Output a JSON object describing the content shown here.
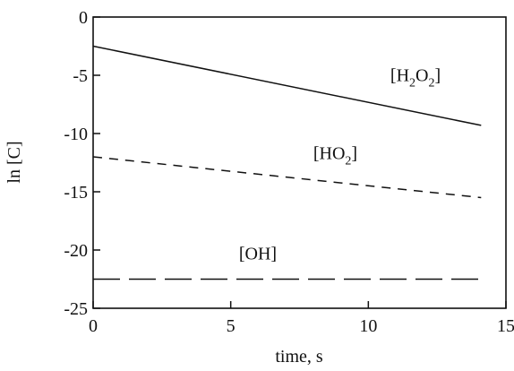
{
  "chart_data": {
    "type": "line",
    "xlabel": "time, s",
    "ylabel": "ln [C]",
    "xlim": [
      0,
      15
    ],
    "ylim": [
      -25,
      0
    ],
    "x_ticks": [
      "0",
      "5",
      "10",
      "15"
    ],
    "y_ticks": [
      "0",
      "-5",
      "-10",
      "-15",
      "-20",
      "-25"
    ],
    "grid": false,
    "legend": "none",
    "series": [
      {
        "id": "h2o2",
        "label_parts": [
          [
            "[H",
            0
          ],
          [
            "2",
            1
          ],
          [
            "O",
            0
          ],
          [
            "2",
            1
          ],
          [
            "]",
            0
          ]
        ],
        "style": "solid",
        "x": [
          0,
          14.1
        ],
        "y": [
          -2.5,
          -9.3
        ],
        "label_at": [
          10.8,
          -5.5
        ]
      },
      {
        "id": "ho2",
        "label_parts": [
          [
            "[HO",
            0
          ],
          [
            "2",
            1
          ],
          [
            "]",
            0
          ]
        ],
        "style": "short-dash",
        "x": [
          0,
          14.1
        ],
        "y": [
          -12.0,
          -15.5
        ],
        "label_at": [
          8.0,
          -12.2
        ]
      },
      {
        "id": "oh",
        "label_parts": [
          [
            "[OH]",
            0
          ]
        ],
        "style": "long-dash",
        "x": [
          0,
          14.1
        ],
        "y": [
          -22.5,
          -22.5
        ],
        "label_at": [
          5.3,
          -20.8
        ]
      }
    ]
  }
}
